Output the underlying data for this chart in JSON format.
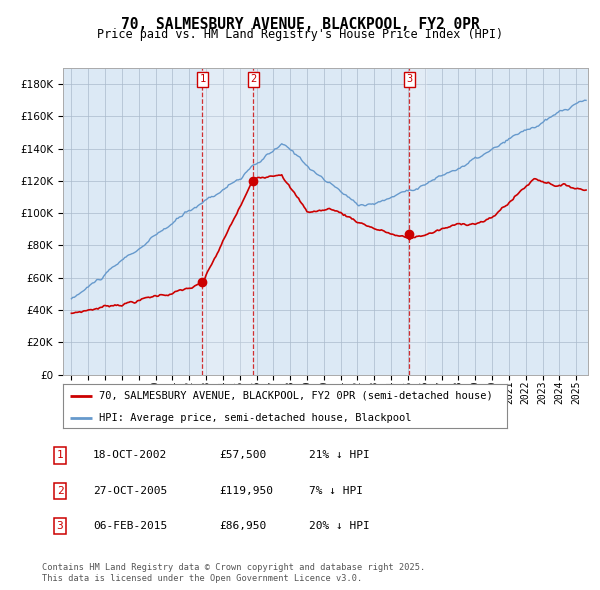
{
  "title": "70, SALMESBURY AVENUE, BLACKPOOL, FY2 0PR",
  "subtitle": "Price paid vs. HM Land Registry's House Price Index (HPI)",
  "legend_line1": "70, SALMESBURY AVENUE, BLACKPOOL, FY2 0PR (semi-detached house)",
  "legend_line2": "HPI: Average price, semi-detached house, Blackpool",
  "sale1_label": "1",
  "sale1_date": "18-OCT-2002",
  "sale1_price": "£57,500",
  "sale1_hpi": "21% ↓ HPI",
  "sale2_label": "2",
  "sale2_date": "27-OCT-2005",
  "sale2_price": "£119,950",
  "sale2_hpi": "7% ↓ HPI",
  "sale3_label": "3",
  "sale3_date": "06-FEB-2015",
  "sale3_price": "£86,950",
  "sale3_hpi": "20% ↓ HPI",
  "footnote": "Contains HM Land Registry data © Crown copyright and database right 2025.\nThis data is licensed under the Open Government Licence v3.0.",
  "red_color": "#cc0000",
  "blue_color": "#6699cc",
  "bg_color": "#dce9f5",
  "grid_color": "#aabbcc",
  "sale1_x": 2002.79,
  "sale1_y": 57500,
  "sale2_x": 2005.82,
  "sale2_y": 119950,
  "sale3_x": 2015.09,
  "sale3_y": 86950,
  "ylim": [
    0,
    190000
  ],
  "xlim_start": 1994.5,
  "xlim_end": 2025.7
}
